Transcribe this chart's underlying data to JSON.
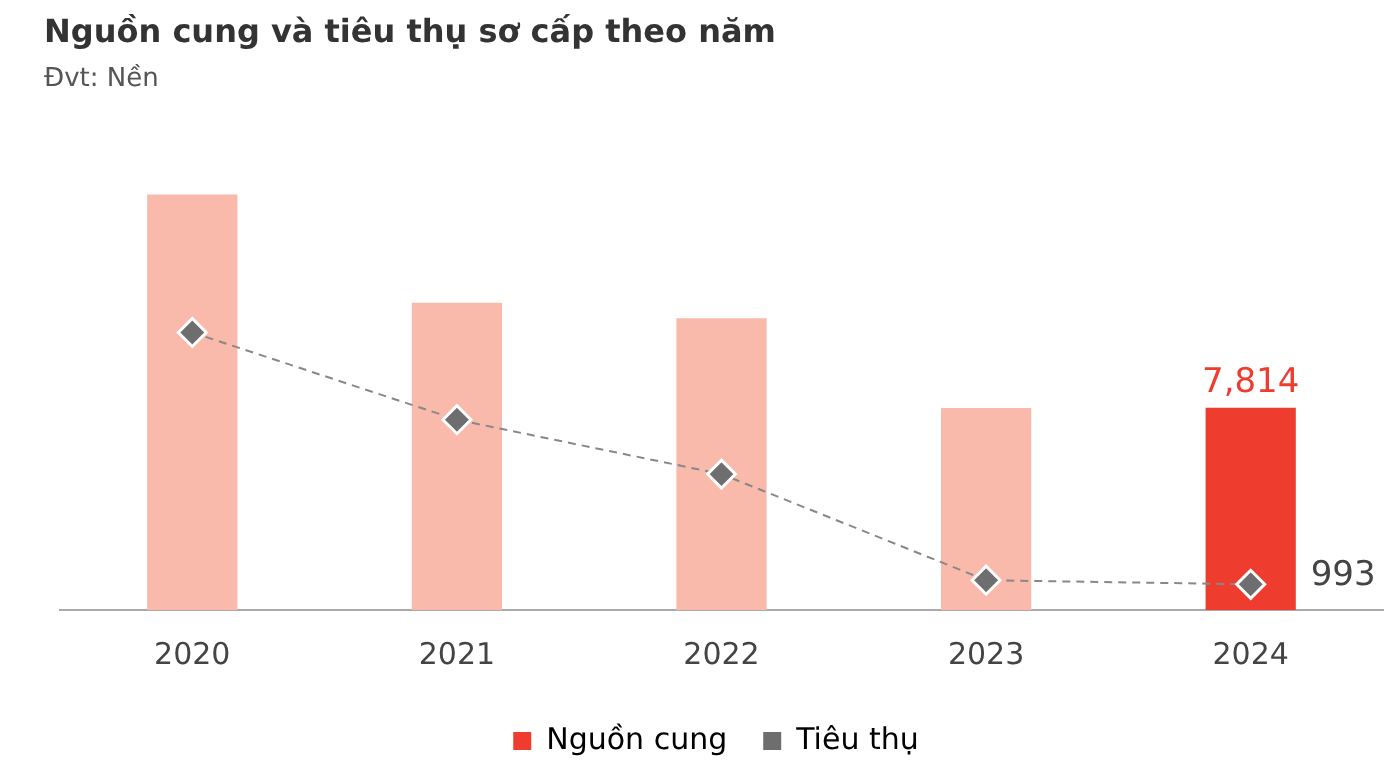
{
  "chart_data": {
    "type": "bar",
    "title": "Nguồn cung và tiêu thụ sơ cấp theo năm",
    "subtitle": "Đvt: Nền",
    "categories": [
      "2020",
      "2021",
      "2022",
      "2023",
      "2024"
    ],
    "series": [
      {
        "name": "Nguồn cung",
        "color": "#ee3d2f",
        "colors": [
          "#f9b9ab",
          "#f9b9ab",
          "#f9b9ab",
          "#f9b9ab",
          "#ee3d2f"
        ],
        "values": [
          16050,
          11870,
          11270,
          7800,
          7814
        ],
        "value_labels": [
          null,
          null,
          null,
          null,
          "7,814"
        ]
      },
      {
        "name": "Tiêu thụ",
        "type": "line",
        "color": "#6e6e6e",
        "values": [
          10720,
          7350,
          5250,
          1150,
          993
        ],
        "value_labels": [
          null,
          null,
          null,
          null,
          "993"
        ],
        "marker": "diamond",
        "line_style": "dashed"
      }
    ],
    "tick_labels": "x",
    "grid": false,
    "legend": "bottom"
  }
}
